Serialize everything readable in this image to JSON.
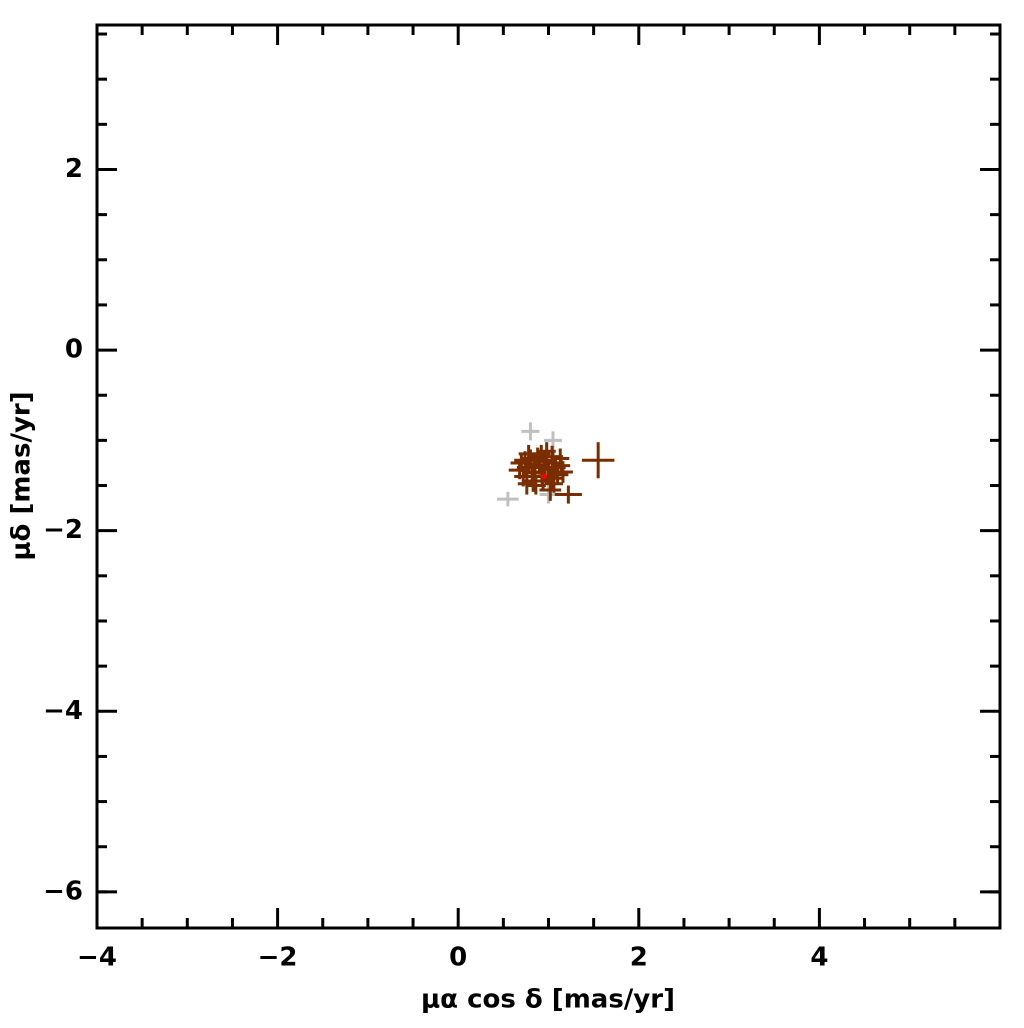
{
  "chart_data": {
    "type": "scatter",
    "xlabel": "μα cos δ [mas/yr]",
    "ylabel": "μδ [mas/yr]",
    "xlim": [
      -4,
      6
    ],
    "ylim": [
      -6.4,
      3.6
    ],
    "xticks": [
      {
        "value": -4,
        "label": "−4"
      },
      {
        "value": -2,
        "label": "−2"
      },
      0,
      2,
      4
    ],
    "yticks": [
      {
        "value": -6,
        "label": "−6"
      },
      {
        "value": -4,
        "label": "−4"
      },
      {
        "value": -2,
        "label": "−2"
      },
      0,
      2
    ],
    "xticks_minor": [
      -3.5,
      -3,
      -2.5,
      -1.5,
      -1,
      -0.5,
      0.5,
      1,
      1.5,
      2.5,
      3,
      3.5,
      4.5,
      5,
      5.5
    ],
    "yticks_minor": [
      -6,
      -5.5,
      -5,
      -4.5,
      -3.5,
      -3,
      -2.5,
      -1.5,
      -1,
      -0.5,
      0.5,
      1,
      1.5,
      2.5,
      3,
      3.5
    ],
    "series": [
      {
        "color": "#c0c0c0",
        "x": [
          0.8,
          1.05,
          0.55,
          1.0
        ],
        "y": [
          -0.9,
          -1.0,
          -1.65,
          -1.6
        ],
        "xerr": [
          0.1,
          0.1,
          0.12,
          0.1
        ],
        "yerr": [
          0.1,
          0.1,
          0.08,
          0.1
        ]
      },
      {
        "color": "#7a2e00",
        "x": [
          0.7,
          0.75,
          0.8,
          0.85,
          0.9,
          0.95,
          1.0,
          1.05,
          1.1,
          0.72,
          0.78,
          0.83,
          0.88,
          0.93,
          0.98,
          1.03,
          1.08,
          1.13,
          0.68,
          0.76,
          0.86,
          0.96,
          1.06,
          1.16,
          0.74,
          0.84,
          0.94,
          1.04,
          1.14,
          0.82,
          0.92,
          1.02,
          1.22,
          1.55
        ],
        "y": [
          -1.25,
          -1.3,
          -1.2,
          -1.35,
          -1.28,
          -1.22,
          -1.32,
          -1.25,
          -1.38,
          -1.4,
          -1.15,
          -1.45,
          -1.18,
          -1.4,
          -1.12,
          -1.42,
          -1.3,
          -1.2,
          -1.33,
          -1.48,
          -1.5,
          -1.3,
          -1.48,
          -1.35,
          -1.22,
          -1.27,
          -1.45,
          -1.18,
          -1.28,
          -1.36,
          -1.15,
          -1.55,
          -1.6,
          -1.22
        ],
        "xerr": [
          0.12,
          0.1,
          0.11,
          0.13,
          0.1,
          0.12,
          0.11,
          0.1,
          0.12,
          0.1,
          0.11,
          0.12,
          0.1,
          0.11,
          0.1,
          0.12,
          0.11,
          0.1,
          0.12,
          0.1,
          0.11,
          0.12,
          0.1,
          0.11,
          0.12,
          0.1,
          0.11,
          0.12,
          0.1,
          0.11,
          0.1,
          0.12,
          0.15,
          0.18
        ],
        "yerr": [
          0.1,
          0.11,
          0.1,
          0.12,
          0.1,
          0.11,
          0.1,
          0.12,
          0.1,
          0.11,
          0.1,
          0.12,
          0.1,
          0.11,
          0.1,
          0.12,
          0.1,
          0.11,
          0.1,
          0.12,
          0.1,
          0.11,
          0.1,
          0.12,
          0.1,
          0.11,
          0.1,
          0.12,
          0.1,
          0.11,
          0.1,
          0.12,
          0.1,
          0.2
        ]
      },
      {
        "color": "#ff0000",
        "x": [
          0.95
        ],
        "y": [
          -1.4
        ],
        "xerr": [
          0.03
        ],
        "yerr": [
          0.03
        ]
      }
    ]
  }
}
